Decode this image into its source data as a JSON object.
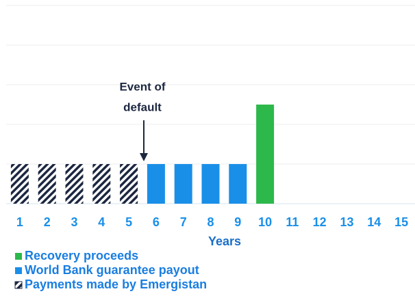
{
  "chart_data": {
    "type": "bar",
    "x_label": "Years",
    "annotation": [
      "Event of",
      "default"
    ],
    "categories": [
      "1",
      "2",
      "3",
      "4",
      "5",
      "6",
      "7",
      "8",
      "9",
      "10",
      "11",
      "12",
      "13",
      "14",
      "15"
    ],
    "series": [
      {
        "name": "Recovery proceeds",
        "color": "#2db84b",
        "values": [
          null,
          null,
          null,
          null,
          null,
          null,
          null,
          null,
          null,
          2.5,
          null,
          null,
          null,
          null,
          null
        ]
      },
      {
        "name": "World Bank guarantee payout",
        "color": "#1a8fe8",
        "values": [
          null,
          null,
          null,
          null,
          null,
          1,
          1,
          1,
          1,
          null,
          null,
          null,
          null,
          null,
          null
        ]
      },
      {
        "name": "Payments made by Emergistan",
        "color": "#1c2740",
        "pattern": "hatch",
        "values": [
          1,
          1,
          1,
          1,
          1,
          null,
          null,
          null,
          null,
          null,
          null,
          null,
          null,
          null,
          null
        ]
      }
    ],
    "ylim": [
      0,
      5
    ],
    "yticks": [
      0,
      1,
      2,
      3,
      4,
      5
    ],
    "grid": true
  }
}
